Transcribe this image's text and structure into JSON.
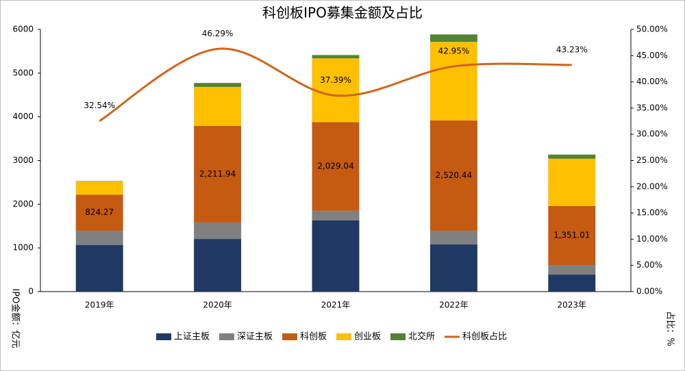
{
  "chart_data": {
    "type": "bar",
    "stacked": true,
    "title": "科创板IPO募集金额及占比",
    "y_label": "IPO金额：亿元",
    "y2_label": "占比：%",
    "categories": [
      "2019年",
      "2020年",
      "2021年",
      "2022年",
      "2023年"
    ],
    "series": [
      {
        "name": "上证主板",
        "color": "#203864",
        "values": [
          1065,
          1205,
          1630,
          1080,
          390
        ]
      },
      {
        "name": "深证主板",
        "color": "#808080",
        "values": [
          330,
          378,
          220,
          315,
          220
        ]
      },
      {
        "name": "科创板",
        "color": "#c55a11",
        "values": [
          824.27,
          2211.94,
          2029.04,
          2520.44,
          1351.01
        ],
        "value_labels": [
          "824.27",
          "2,211.94",
          "2,029.04",
          "2,520.44",
          "1,351.01"
        ]
      },
      {
        "name": "创业板",
        "color": "#ffc000",
        "values": [
          300,
          890,
          1460,
          1800,
          1080
        ]
      },
      {
        "name": "北交所",
        "color": "#548235",
        "values": [
          10,
          90,
          75,
          170,
          95
        ]
      },
      {
        "name": "科创板占比",
        "color": "#d0641c",
        "type": "line",
        "axis": "y2",
        "smooth": true,
        "values": [
          32.54,
          46.29,
          37.39,
          42.95,
          43.23
        ],
        "value_labels": [
          "32.54%",
          "46.29%",
          "37.39%",
          "42.95%",
          "43.23%"
        ]
      }
    ],
    "ylim": [
      0,
      6000
    ],
    "yticks": [
      0,
      1000,
      2000,
      3000,
      4000,
      5000,
      6000
    ],
    "y2lim": [
      0,
      50
    ],
    "y2ticks": [
      {
        "value": 0,
        "label": "0.00%"
      },
      {
        "value": 5,
        "label": "5.00%"
      },
      {
        "value": 10,
        "label": "10.00%"
      },
      {
        "value": 15,
        "label": "15.00%"
      },
      {
        "value": 20,
        "label": "20.00%"
      },
      {
        "value": 25,
        "label": "25.00%"
      },
      {
        "value": 30,
        "label": "30.00%"
      },
      {
        "value": 35,
        "label": "35.00%"
      },
      {
        "value": 40,
        "label": "40.00%"
      },
      {
        "value": 45,
        "label": "45.00%"
      },
      {
        "value": 50,
        "label": "50.00%"
      }
    ],
    "legend": "bottom"
  }
}
